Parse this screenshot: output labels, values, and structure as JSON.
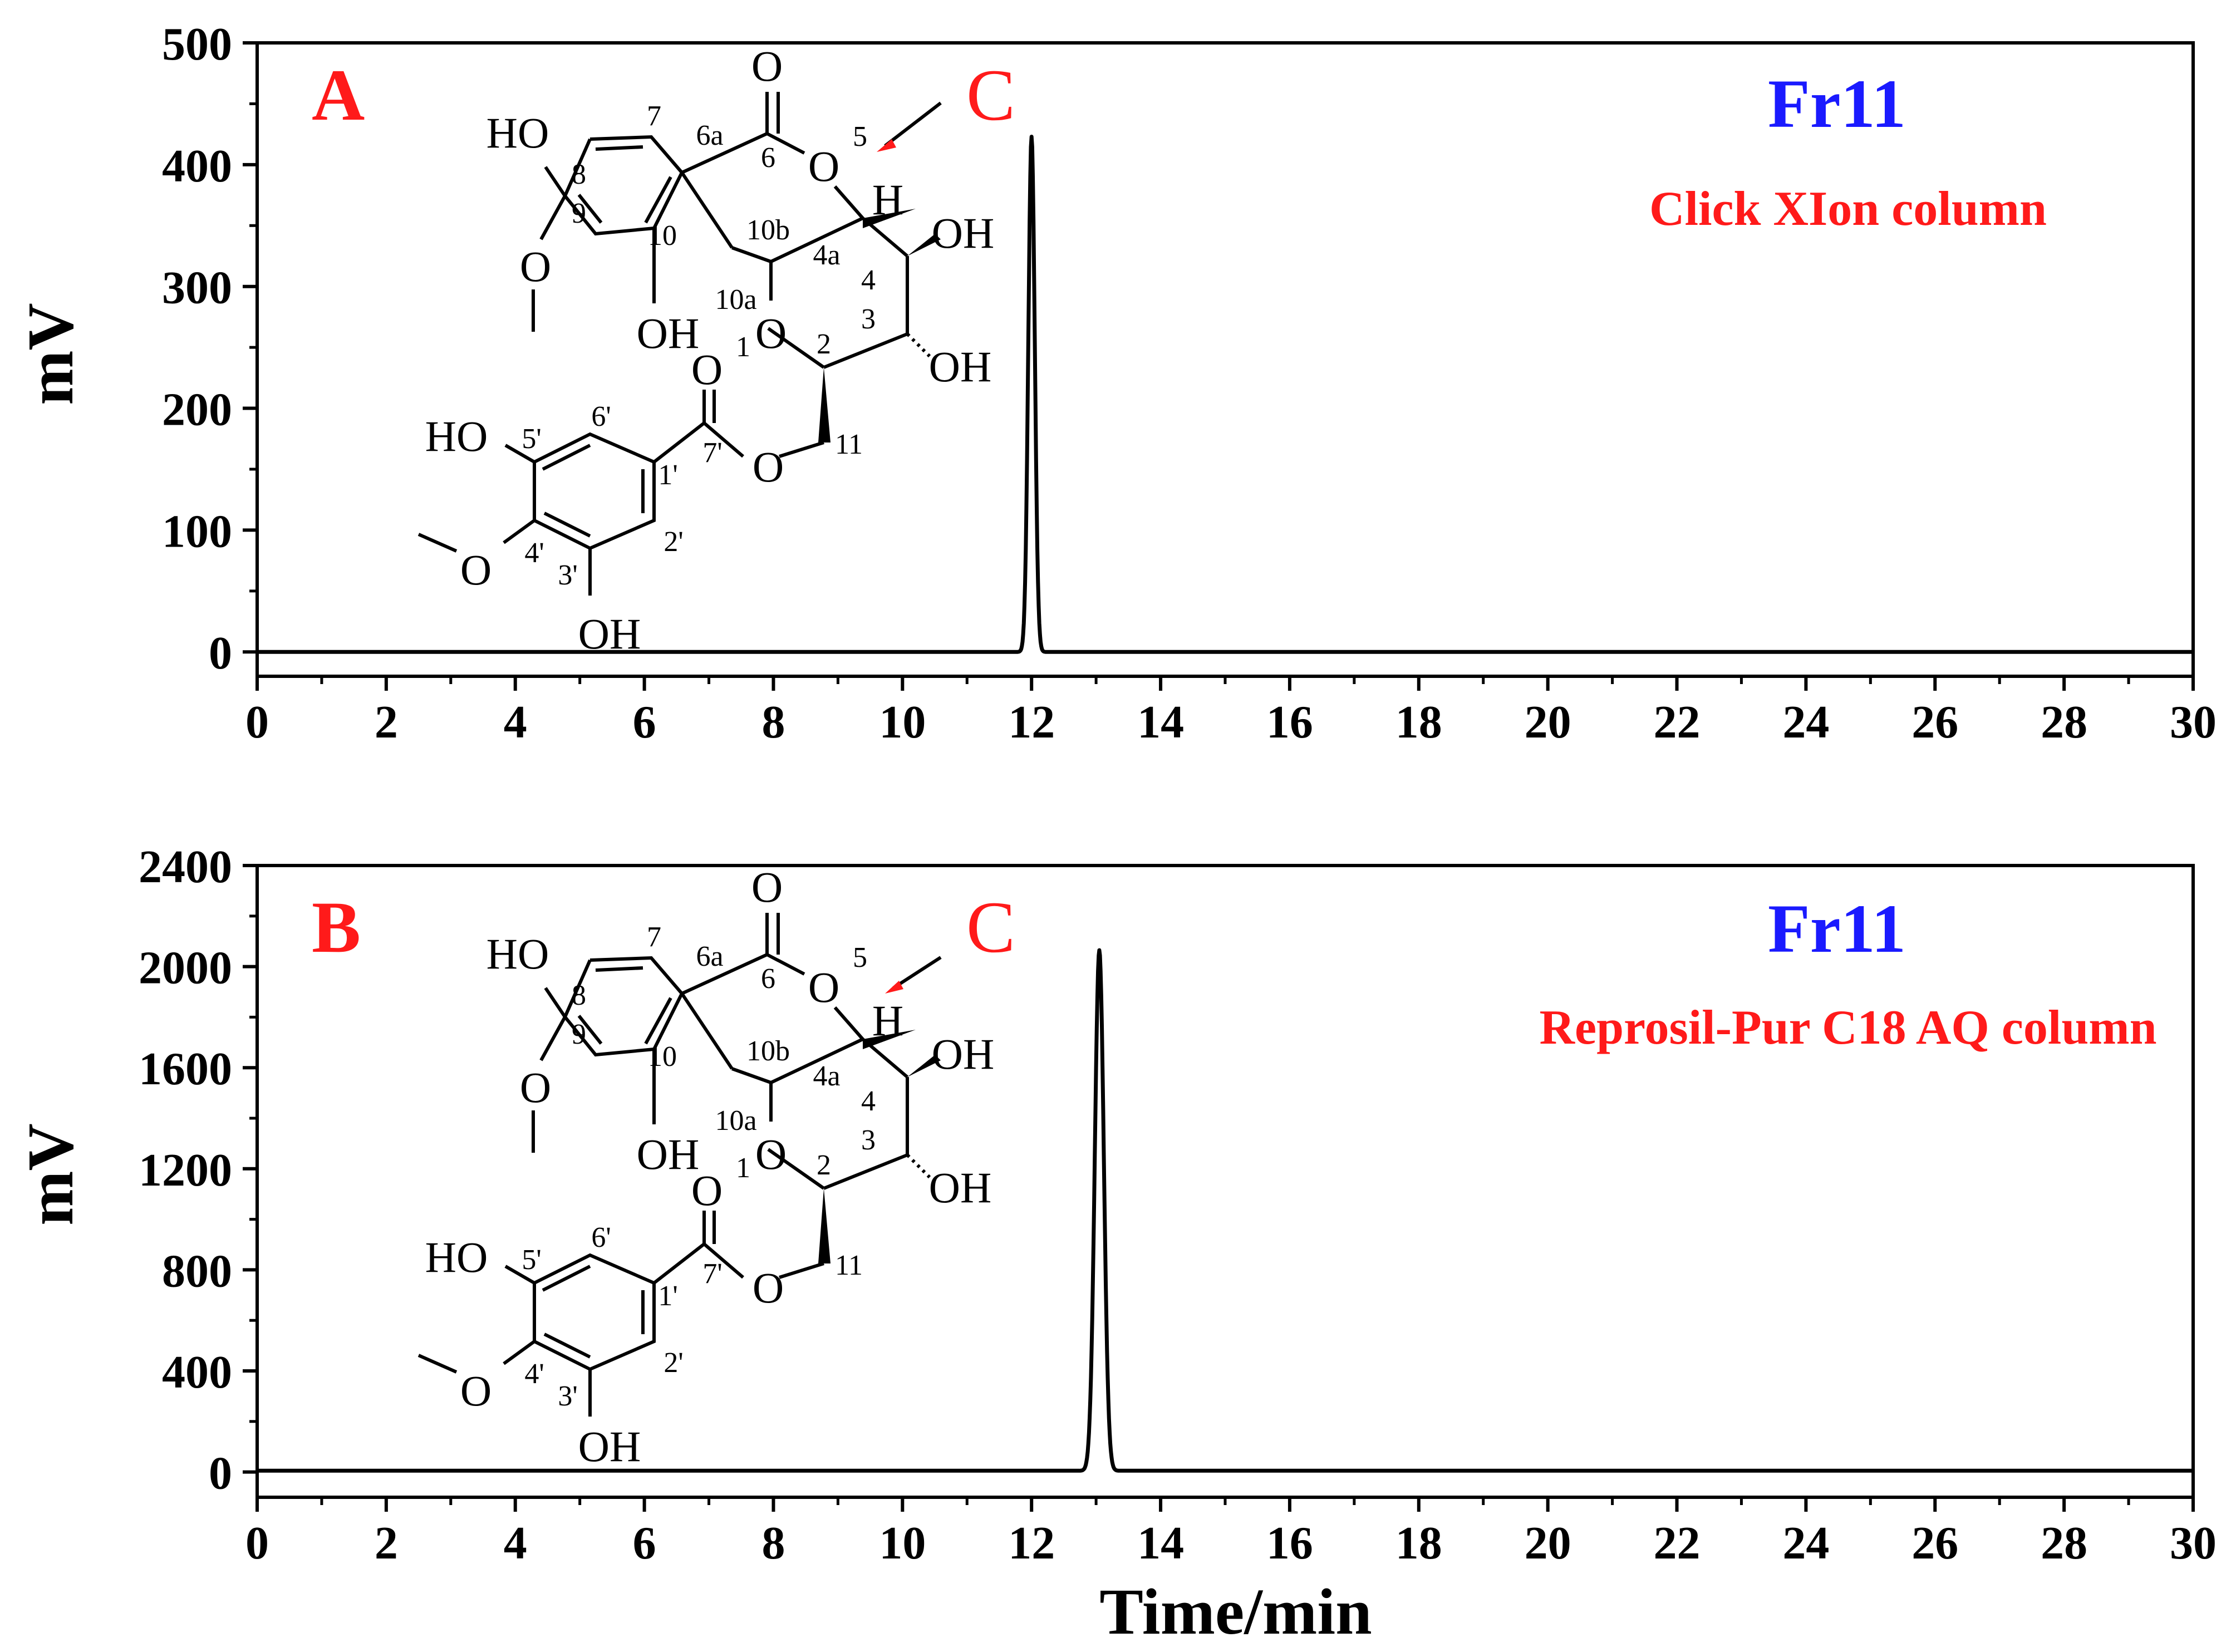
{
  "chart_data": [
    {
      "type": "line",
      "panel_label": "A",
      "sample": "Fr11",
      "column": "Click XIon column",
      "ylabel": "mV",
      "xlabel": "",
      "xlim": [
        0,
        30
      ],
      "ylim": [
        -20,
        500
      ],
      "x_ticks": [
        "0",
        "2",
        "4",
        "6",
        "8",
        "10",
        "12",
        "14",
        "16",
        "18",
        "20",
        "22",
        "24",
        "26",
        "28",
        "30"
      ],
      "y_ticks": [
        "0",
        "100",
        "200",
        "300",
        "400",
        "500"
      ],
      "grid": false,
      "series": [
        {
          "color": "#000000",
          "baseline": 0,
          "peak": {
            "x": 12.0,
            "y": 423,
            "sigma": 0.05
          }
        }
      ]
    },
    {
      "type": "line",
      "panel_label": "B",
      "sample": "Fr11",
      "column": "Reprosil-Pur C18 AQ column",
      "ylabel": "mV",
      "xlabel": "Time/min",
      "xlim": [
        0,
        30
      ],
      "ylim": [
        -100,
        2400
      ],
      "x_ticks": [
        "0",
        "2",
        "4",
        "6",
        "8",
        "10",
        "12",
        "14",
        "16",
        "18",
        "20",
        "22",
        "24",
        "26",
        "28",
        "30"
      ],
      "y_ticks": [
        "0",
        "400",
        "800",
        "1200",
        "1600",
        "2000",
        "2400"
      ],
      "grid": false,
      "series": [
        {
          "color": "#000000",
          "baseline": 5,
          "peak": {
            "x": 13.05,
            "y": 2065,
            "sigma": 0.07
          }
        }
      ]
    }
  ],
  "structure": {
    "arrow_label": "C",
    "atoms": {
      "O_carbonyl": "O",
      "HO_8": "HO",
      "O_ring5": "O",
      "H_4a": "H",
      "OH_4": "OH",
      "O_9": "O",
      "OH_10": "OH",
      "O_ring1": "O",
      "OH_3": "OH",
      "O_ester": "O",
      "HO_5p": "HO",
      "O_ester2": "O",
      "O_4p": "O",
      "OH_3p": "OH"
    },
    "numbers": {
      "n7": "7",
      "n6a": "6a",
      "n6": "6",
      "n5": "5",
      "n8": "8",
      "n9": "9",
      "n10": "10",
      "n10b": "10b",
      "n4a": "4a",
      "n4": "4",
      "n10a": "10a",
      "n1": "1",
      "n2": "2",
      "n3": "3",
      "n11": "11",
      "n6p": "6'",
      "n5p": "5'",
      "n7p": "7'",
      "n1p": "1'",
      "n4p": "4'",
      "n3p": "3'",
      "n2p": "2'"
    }
  }
}
